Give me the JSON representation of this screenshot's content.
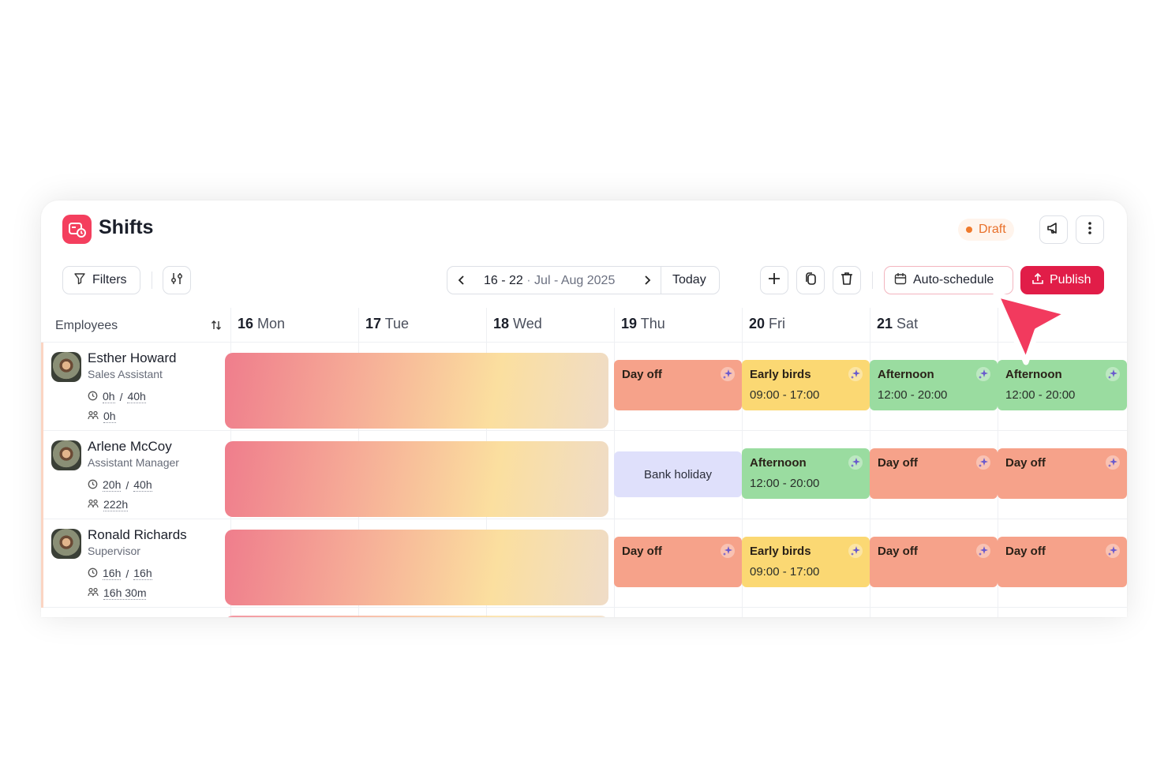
{
  "header": {
    "app_title": "Shifts",
    "status_badge": "Draft"
  },
  "toolbar": {
    "filters_label": "Filters",
    "date_range": "16 - 22",
    "date_period": "Jul - Aug 2025",
    "today_label": "Today",
    "auto_schedule_label": "Auto-schedule",
    "publish_label": "Publish"
  },
  "grid": {
    "employees_header": "Employees",
    "days": [
      {
        "num": "16",
        "name": "Mon"
      },
      {
        "num": "17",
        "name": "Tue"
      },
      {
        "num": "18",
        "name": "Wed"
      },
      {
        "num": "19",
        "name": "Thu"
      },
      {
        "num": "20",
        "name": "Fri"
      },
      {
        "num": "21",
        "name": "Sat"
      }
    ]
  },
  "employees": [
    {
      "name": "Esther Howard",
      "role": "Sales Assistant",
      "hours_done": "0h",
      "hours_total": "40h",
      "overtime": "0h",
      "shifts": [
        {
          "label": "Day off",
          "time": ""
        },
        {
          "label": "Early birds",
          "time": "09:00 - 17:00"
        },
        {
          "label": "Afternoon",
          "time": "12:00 - 20:00"
        },
        {
          "label": "Afternoon",
          "time": "12:00 - 20:00"
        }
      ]
    },
    {
      "name": "Arlene McCoy",
      "role": "Assistant Manager",
      "hours_done": "20h",
      "hours_total": "40h",
      "overtime": "222h",
      "shifts": [
        {
          "label": "Bank holiday",
          "time": ""
        },
        {
          "label": "Afternoon",
          "time": "12:00 - 20:00"
        },
        {
          "label": "Day off",
          "time": ""
        },
        {
          "label": "Day off",
          "time": ""
        }
      ]
    },
    {
      "name": "Ronald Richards",
      "role": "Supervisor",
      "hours_done": "16h",
      "hours_total": "16h",
      "overtime": "16h 30m",
      "shifts": [
        {
          "label": "Day off",
          "time": ""
        },
        {
          "label": "Early birds",
          "time": "09:00 - 17:00"
        },
        {
          "label": "Day off",
          "time": ""
        },
        {
          "label": "Day off",
          "time": ""
        }
      ]
    }
  ],
  "colors": {
    "brand": "#f43f5e",
    "publish": "#e11d48",
    "day_off": "#f6a28a",
    "early_birds": "#fbd873",
    "afternoon": "#9adca0",
    "bank_holiday": "#dfe0fb",
    "draft": "#f07a2c"
  }
}
